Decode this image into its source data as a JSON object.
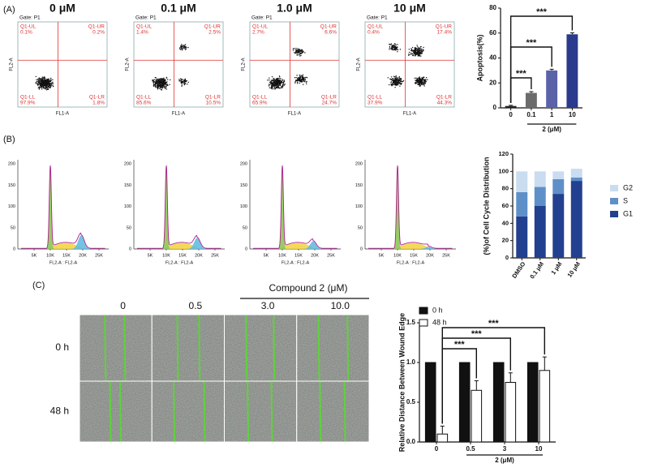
{
  "panel_labels": [
    "(A)",
    "(B)",
    "(C)"
  ],
  "flow": {
    "gate": "Gate: P1",
    "y_label": "FL2-A",
    "x_label": "FL1-A",
    "plots": [
      {
        "title": "0 μM",
        "quadrants": [
          {
            "name": "Q1-UL",
            "value": "0.1%"
          },
          {
            "name": "Q1-UR",
            "value": "0.2%"
          },
          {
            "name": "Q1-LL",
            "value": "97.9%"
          },
          {
            "name": "Q1-LR",
            "value": "1.8%"
          }
        ]
      },
      {
        "title": "0.1 μM",
        "quadrants": [
          {
            "name": "Q1-UL",
            "value": "1.4%"
          },
          {
            "name": "Q1-UR",
            "value": "2.5%"
          },
          {
            "name": "Q1-LL",
            "value": "85.6%"
          },
          {
            "name": "Q1-LR",
            "value": "10.5%"
          }
        ]
      },
      {
        "title": "1.0 μM",
        "quadrants": [
          {
            "name": "Q1-UL",
            "value": "2.7%"
          },
          {
            "name": "Q1-UR",
            "value": "6.6%"
          },
          {
            "name": "Q1-LL",
            "value": "65.9%"
          },
          {
            "name": "Q1-LR",
            "value": "24.7%"
          }
        ]
      },
      {
        "title": "10 μM",
        "quadrants": [
          {
            "name": "Q1-UL",
            "value": "0.4%"
          },
          {
            "name": "Q1-UR",
            "value": "17.4%"
          },
          {
            "name": "Q1-LL",
            "value": "37.9%"
          },
          {
            "name": "Q1-LR",
            "value": "44.3%"
          }
        ]
      }
    ]
  },
  "histogram": {
    "yticks": [
      "0",
      "50",
      "100",
      "150",
      "200"
    ],
    "xticks": [
      "5K",
      "10K",
      "15K",
      "20K",
      "25K"
    ],
    "xlabel": "FL2-A : FL2-A"
  },
  "wound": {
    "compound_label": "Compound 2  (μM)",
    "columns": [
      "0",
      "0.5",
      "3.0",
      "10.0"
    ],
    "rows": [
      "0 h",
      "48 h"
    ]
  },
  "chart_data": [
    {
      "type": "bar",
      "ylabel": "Apoptosis(%)",
      "xlabel": "2 (μM)",
      "categories": [
        "0",
        "0.1",
        "1",
        "10"
      ],
      "values": [
        1.5,
        12,
        30,
        59
      ],
      "errors": [
        0.5,
        1,
        1,
        1.2
      ],
      "colors": [
        "#222222",
        "#6b6b6b",
        "#5a63a8",
        "#2a3a8c"
      ],
      "ylim": [
        0,
        80
      ],
      "yticks": [
        0,
        20,
        40,
        60,
        80
      ],
      "annotations": [
        "***",
        "***",
        "***"
      ]
    },
    {
      "type": "stacked_bar",
      "ylabel": "(%)of Cell Cycle Distribution",
      "categories": [
        "DMSO",
        "0.1 μM",
        "1 μM",
        "10 μM"
      ],
      "series": [
        {
          "name": "G1",
          "color": "#22408f",
          "values": [
            48,
            60,
            74,
            89
          ]
        },
        {
          "name": "S",
          "color": "#5f8fc8",
          "values": [
            28,
            22,
            17,
            4
          ]
        },
        {
          "name": "G2",
          "color": "#c9dcf0",
          "values": [
            24,
            18,
            9,
            10
          ]
        }
      ],
      "ylim": [
        0,
        120
      ],
      "yticks": [
        0,
        20,
        40,
        60,
        80,
        100,
        120
      ]
    },
    {
      "type": "bar",
      "ylabel": "Relative Distance Between Wound Edge",
      "xlabel": "2 (μM)",
      "categories": [
        "0",
        "0.5",
        "3",
        "10"
      ],
      "series": [
        {
          "name": "0 h",
          "color": "#111111",
          "values": [
            1,
            1,
            1,
            1
          ]
        },
        {
          "name": "48 h",
          "color": "#ffffff",
          "values": [
            0.1,
            0.65,
            0.75,
            0.9
          ],
          "errors": [
            0.1,
            0.12,
            0.12,
            0.17
          ]
        }
      ],
      "ylim": [
        0,
        1.5
      ],
      "yticks": [
        {
          "value": 0,
          "label": "0.0"
        },
        0.5,
        {
          "value": 1,
          "label": "1.0"
        },
        1.5
      ],
      "annotations": [
        "***",
        "***",
        "***"
      ]
    }
  ]
}
